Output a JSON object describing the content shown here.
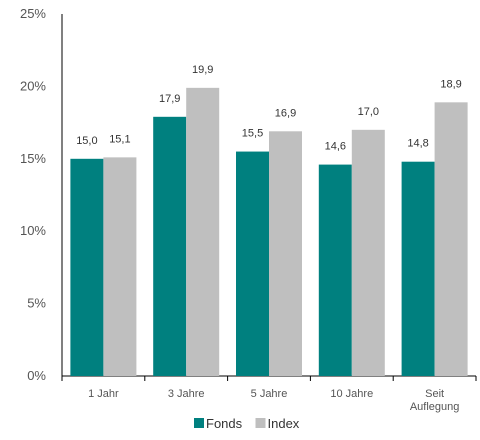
{
  "chart_data": {
    "type": "bar",
    "categories": [
      "1 Jahr",
      "3 Jahre",
      "5 Jahre",
      "10 Jahre",
      [
        "Seit",
        "Auflegung"
      ]
    ],
    "series": [
      {
        "name": "Fonds",
        "color": "#00807f",
        "values": [
          15.0,
          17.9,
          15.5,
          14.6,
          14.8
        ],
        "labels": [
          "15,0",
          "17,9",
          "15,5",
          "14,6",
          "14,8"
        ]
      },
      {
        "name": "Index",
        "color": "#bfbfbf",
        "values": [
          15.1,
          19.9,
          16.9,
          17.0,
          18.9
        ],
        "labels": [
          "15,1",
          "19,9",
          "16,9",
          "17,0",
          "18,9"
        ]
      }
    ],
    "ylim": [
      0,
      25
    ],
    "yticks": [
      0,
      5,
      10,
      15,
      20,
      25
    ],
    "ytick_labels": [
      "0%",
      "5%",
      "10%",
      "15%",
      "20%",
      "25%"
    ],
    "grid": false,
    "legend_position": "bottom-center"
  }
}
